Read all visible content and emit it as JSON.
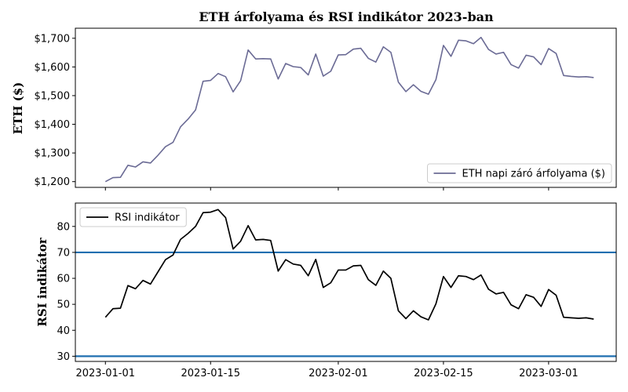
{
  "chart_data": {
    "type": "line",
    "title": "ETH árfolyama és RSI indikátor 2023-ban",
    "x_tick_labels": [
      "2023-01-01",
      "2023-01-15",
      "2023-02-01",
      "2023-02-15",
      "2023-03-01"
    ],
    "x_tick_dates": [
      "2023-01-01",
      "2023-01-15",
      "2023-02-01",
      "2023-02-15",
      "2023-03-01"
    ],
    "x_range": [
      "2022-12-28",
      "2023-03-10"
    ],
    "dates": [
      "2023-01-01",
      "2023-01-02",
      "2023-01-03",
      "2023-01-04",
      "2023-01-05",
      "2023-01-06",
      "2023-01-07",
      "2023-01-08",
      "2023-01-09",
      "2023-01-10",
      "2023-01-11",
      "2023-01-12",
      "2023-01-13",
      "2023-01-14",
      "2023-01-15",
      "2023-01-16",
      "2023-01-17",
      "2023-01-18",
      "2023-01-19",
      "2023-01-20",
      "2023-01-21",
      "2023-01-22",
      "2023-01-23",
      "2023-01-24",
      "2023-01-25",
      "2023-01-26",
      "2023-01-27",
      "2023-01-28",
      "2023-01-29",
      "2023-01-30",
      "2023-01-31",
      "2023-02-01",
      "2023-02-02",
      "2023-02-03",
      "2023-02-04",
      "2023-02-05",
      "2023-02-06",
      "2023-02-07",
      "2023-02-08",
      "2023-02-09",
      "2023-02-10",
      "2023-02-11",
      "2023-02-12",
      "2023-02-13",
      "2023-02-14",
      "2023-02-15",
      "2023-02-16",
      "2023-02-17",
      "2023-02-18",
      "2023-02-19",
      "2023-02-20",
      "2023-02-21",
      "2023-02-22",
      "2023-02-23",
      "2023-02-24",
      "2023-02-25",
      "2023-02-26",
      "2023-02-27",
      "2023-02-28",
      "2023-03-01",
      "2023-03-02",
      "2023-03-03",
      "2023-03-04",
      "2023-03-05",
      "2023-03-06",
      "2023-03-07"
    ],
    "panels": [
      {
        "ylabel": "ETH ($)",
        "ylim": [
          1180,
          1735
        ],
        "yticks": [
          1200,
          1300,
          1400,
          1500,
          1600,
          1700
        ],
        "ytick_labels": [
          "$1,200",
          "$1,300",
          "$1,400",
          "$1,500",
          "$1,600",
          "$1,700"
        ],
        "legend_position": "lower-right",
        "series": [
          {
            "name": "ETH napi záró árfolyama ($)",
            "color": "#6b6b95",
            "values": [
              1200,
              1214,
              1215,
              1257,
              1251,
              1269,
              1265,
              1292,
              1322,
              1337,
              1391,
              1418,
              1450,
              1550,
              1553,
              1577,
              1566,
              1513,
              1552,
              1659,
              1628,
              1629,
              1628,
              1558,
              1612,
              1601,
              1598,
              1572,
              1645,
              1568,
              1585,
              1642,
              1643,
              1662,
              1665,
              1630,
              1617,
              1670,
              1651,
              1547,
              1514,
              1538,
              1515,
              1505,
              1556,
              1675,
              1637,
              1693,
              1691,
              1681,
              1703,
              1661,
              1645,
              1651,
              1608,
              1596,
              1641,
              1635,
              1608,
              1664,
              1647,
              1570,
              1567,
              1565,
              1566,
              1563
            ]
          }
        ]
      },
      {
        "ylabel": "RSI indikátor",
        "ylim": [
          28,
          89
        ],
        "yticks": [
          30,
          40,
          50,
          60,
          70,
          80
        ],
        "ytick_labels": [
          "30",
          "40",
          "50",
          "60",
          "70",
          "80"
        ],
        "legend_position": "upper-left",
        "hlines": [
          70,
          30
        ],
        "hline_color": "#1f6fb0",
        "series": [
          {
            "name": "RSI indikátor",
            "color": "#000000",
            "values": [
              45,
              48.3,
              48.5,
              57.2,
              56,
              59.2,
              57.8,
              62.5,
              67.2,
              69,
              75,
              77.3,
              80,
              85.3,
              85.5,
              86.5,
              83.4,
              71.3,
              74.3,
              80.3,
              74.8,
              75,
              74.6,
              62.8,
              67.2,
              65.5,
              65,
              61,
              67.3,
              56.5,
              58.3,
              63.2,
              63.2,
              64.8,
              65,
              59.5,
              57.3,
              62.8,
              60,
              47.5,
              44.5,
              47.5,
              45.2,
              44,
              50.2,
              60.7,
              56.5,
              61,
              60.7,
              59.5,
              61.3,
              55.8,
              54,
              54.6,
              49.8,
              48.3,
              53.7,
              52.7,
              49.2,
              55.7,
              53.5,
              45,
              44.8,
              44.6,
              44.8,
              44.3
            ]
          }
        ]
      }
    ]
  }
}
